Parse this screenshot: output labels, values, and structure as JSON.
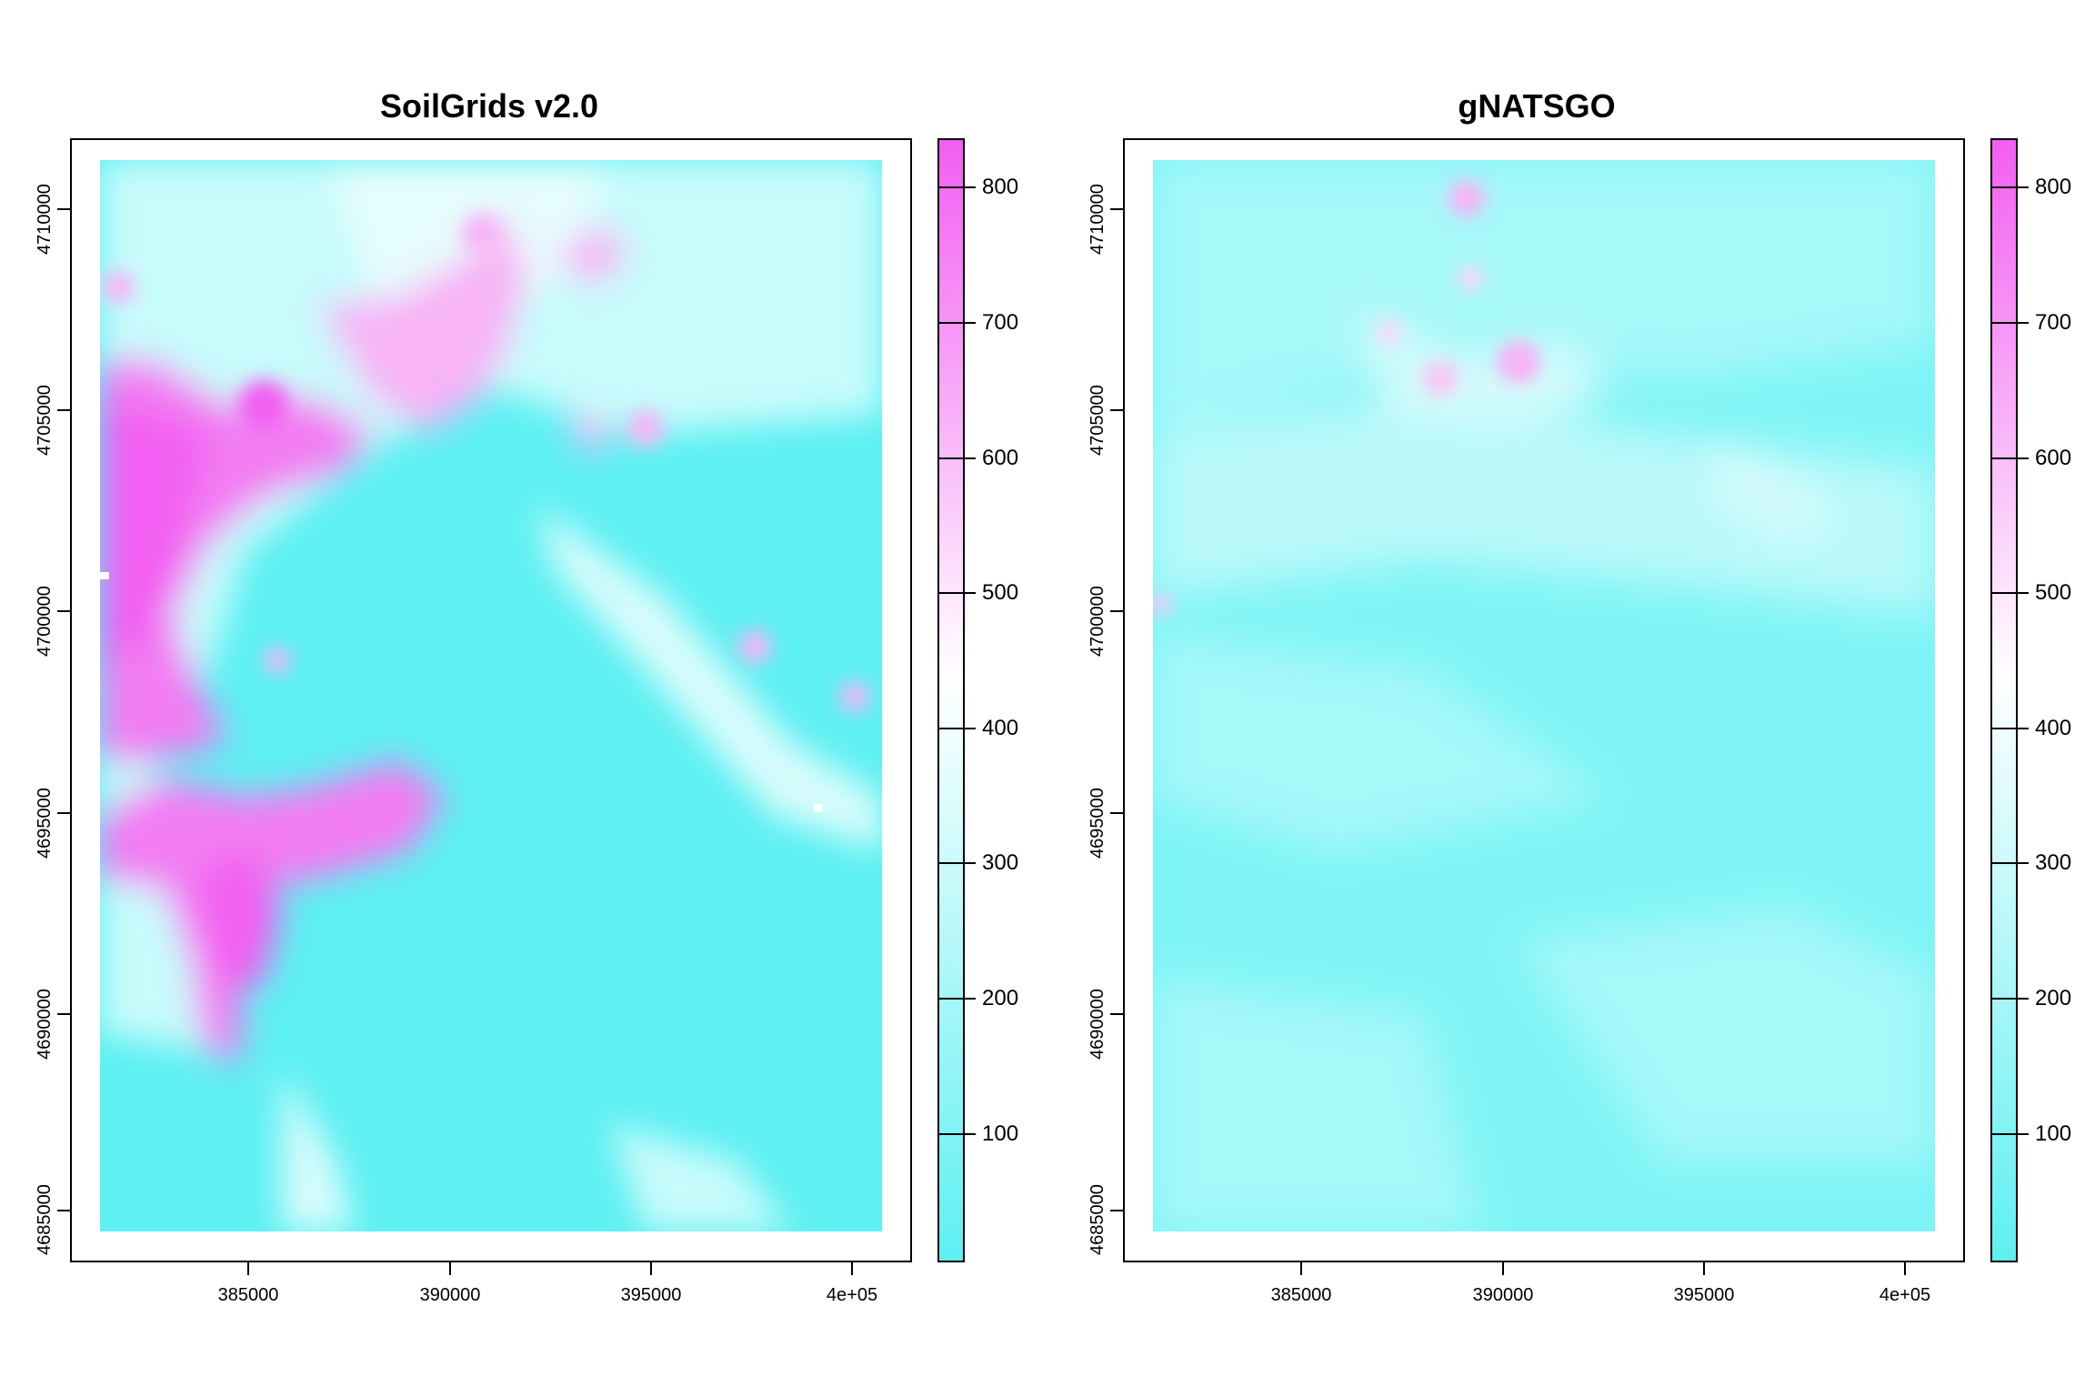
{
  "maps": [
    {
      "title": "SoilGrids v2.0",
      "x_ticks": [
        "385000",
        "390000",
        "395000",
        "4e+05"
      ],
      "y_ticks": [
        "4685000",
        "4690000",
        "4695000",
        "4700000",
        "4705000",
        "4710000"
      ],
      "legend_ticks": [
        "100",
        "200",
        "300",
        "400",
        "500",
        "600",
        "700",
        "800"
      ]
    },
    {
      "title": "gNATSGO",
      "x_ticks": [
        "385000",
        "390000",
        "395000",
        "4e+05"
      ],
      "y_ticks": [
        "4685000",
        "4690000",
        "4695000",
        "4700000",
        "4705000",
        "4710000"
      ],
      "legend_ticks": [
        "100",
        "200",
        "300",
        "400",
        "500",
        "600",
        "700",
        "800"
      ]
    }
  ],
  "colors": {
    "low": "#5ef0f2",
    "mid": "#ffffff",
    "high": "#f25ef2",
    "frame": "#000000"
  }
}
